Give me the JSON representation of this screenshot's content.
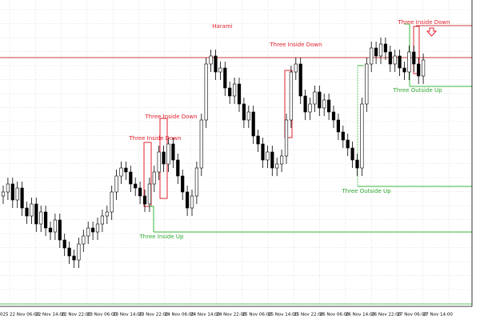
{
  "chart_data": {
    "type": "candlestick",
    "ylim": [
      0,
      380
    ],
    "grid": true,
    "up_color": "#ffffff",
    "down_color": "#000000",
    "open": [
      135,
      140,
      150,
      130,
      145,
      120,
      110,
      125,
      100,
      115,
      95,
      90,
      105,
      80,
      70,
      60,
      55,
      75,
      85,
      95,
      90,
      100,
      110,
      115,
      140,
      160,
      170,
      165,
      150,
      145,
      135,
      125,
      150,
      165,
      190,
      175,
      200,
      180,
      160,
      140,
      120,
      135,
      170,
      230,
      300,
      310,
      290,
      295,
      270,
      260,
      275,
      250,
      230,
      240,
      210,
      200,
      180,
      190,
      170,
      175,
      185,
      230,
      290,
      300,
      260,
      240,
      250,
      265,
      245,
      255,
      240,
      230,
      215,
      205,
      195,
      180,
      170,
      250,
      300,
      320,
      310,
      325,
      315,
      300,
      310,
      295,
      290,
      315,
      300,
      285
    ],
    "high": [
      148,
      158,
      158,
      153,
      153,
      128,
      133,
      133,
      123,
      123,
      103,
      113,
      113,
      88,
      78,
      68,
      83,
      93,
      103,
      103,
      108,
      118,
      123,
      148,
      168,
      178,
      178,
      173,
      158,
      153,
      143,
      158,
      173,
      198,
      198,
      208,
      208,
      188,
      168,
      148,
      143,
      178,
      238,
      308,
      318,
      318,
      303,
      303,
      278,
      283,
      283,
      258,
      248,
      248,
      218,
      208,
      198,
      198,
      183,
      193,
      238,
      298,
      308,
      308,
      268,
      258,
      273,
      273,
      263,
      263,
      248,
      238,
      223,
      213,
      203,
      188,
      258,
      308,
      328,
      328,
      333,
      333,
      323,
      318,
      318,
      303,
      323,
      323,
      308,
      313
    ],
    "low": [
      125,
      130,
      120,
      120,
      110,
      100,
      100,
      90,
      90,
      85,
      80,
      80,
      70,
      60,
      50,
      45,
      45,
      65,
      75,
      80,
      80,
      90,
      100,
      105,
      130,
      150,
      155,
      140,
      135,
      125,
      115,
      115,
      140,
      155,
      165,
      165,
      170,
      150,
      130,
      110,
      110,
      125,
      160,
      220,
      290,
      280,
      280,
      260,
      250,
      250,
      240,
      220,
      220,
      200,
      190,
      170,
      170,
      160,
      160,
      165,
      175,
      220,
      280,
      250,
      230,
      230,
      240,
      235,
      235,
      230,
      220,
      205,
      195,
      185,
      170,
      160,
      160,
      240,
      290,
      300,
      300,
      305,
      290,
      290,
      285,
      280,
      280,
      290,
      275,
      275
    ],
    "close": [
      140,
      150,
      130,
      145,
      120,
      110,
      125,
      100,
      115,
      95,
      90,
      105,
      80,
      70,
      60,
      55,
      75,
      85,
      95,
      90,
      100,
      110,
      115,
      140,
      160,
      170,
      165,
      150,
      145,
      135,
      125,
      150,
      165,
      190,
      175,
      200,
      180,
      160,
      140,
      120,
      135,
      170,
      230,
      300,
      310,
      290,
      295,
      270,
      260,
      275,
      250,
      230,
      240,
      210,
      200,
      180,
      190,
      170,
      175,
      185,
      230,
      290,
      300,
      260,
      240,
      250,
      265,
      245,
      255,
      240,
      230,
      215,
      205,
      195,
      180,
      170,
      250,
      300,
      320,
      310,
      325,
      315,
      300,
      310,
      295,
      290,
      315,
      300,
      285,
      305
    ],
    "reference_line": {
      "value": 308,
      "color": "#c83c3c"
    },
    "levels": [
      {
        "value": 90,
        "color": "#3cb43c"
      },
      {
        "value": 147,
        "color": "#3cb43c"
      },
      {
        "value": 272,
        "color": "#3cb43c"
      },
      {
        "value": 348,
        "color": "#c83c3c"
      }
    ],
    "annotations": [
      {
        "text": "Harami",
        "color": "#e0202c"
      },
      {
        "text": "Three Inside Down",
        "color": "#e0202c"
      },
      {
        "text": "Three Inside Down",
        "color": "#e0202c"
      },
      {
        "text": "Three Inside Down",
        "color": "#e0202c"
      },
      {
        "text": "Three Inside Up",
        "color": "#2ea82e"
      },
      {
        "text": "Three Outside Up",
        "color": "#2ea82e"
      },
      {
        "text": "Three Outside Up",
        "color": "#2ea82e"
      },
      {
        "text": "Three Inside Down",
        "color": "#e0202c"
      }
    ],
    "x_labels": [
      "025",
      "22 Nov 06:00",
      "22 Nov 14:00",
      "22 Nov 22:00",
      "23 Nov 06:00",
      "23 Nov 14:00",
      "23 Nov 22:00",
      "24 Nov 06:00",
      "24 Nov 14:00",
      "24 Nov 22:00",
      "25 Nov 06:00",
      "25 Nov 14:00",
      "25 Nov 22:00",
      "26 Nov 06:00",
      "26 Nov 14:00",
      "26 Nov 22:00",
      "27 Nov 06:00",
      "27 Nov 14:00"
    ]
  }
}
